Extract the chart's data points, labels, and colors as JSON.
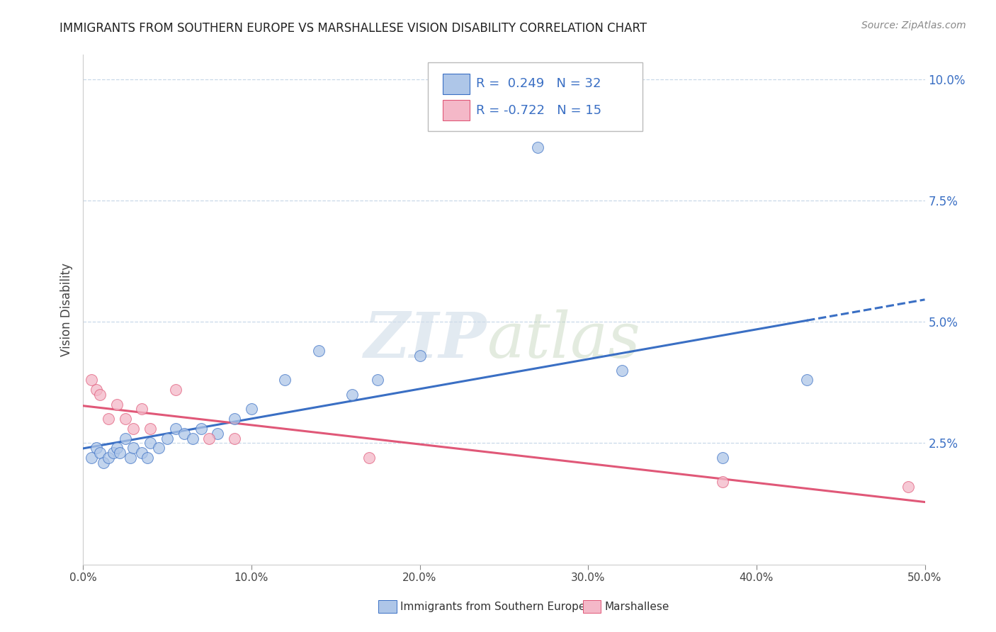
{
  "title": "IMMIGRANTS FROM SOUTHERN EUROPE VS MARSHALLESE VISION DISABILITY CORRELATION CHART",
  "source": "Source: ZipAtlas.com",
  "ylabel": "Vision Disability",
  "xlim": [
    0.0,
    0.5
  ],
  "ylim": [
    0.0,
    0.105
  ],
  "yticks": [
    0.025,
    0.05,
    0.075,
    0.1
  ],
  "ytick_labels": [
    "2.5%",
    "5.0%",
    "7.5%",
    "10.0%"
  ],
  "xticks": [
    0.0,
    0.1,
    0.2,
    0.3,
    0.4,
    0.5
  ],
  "xtick_labels": [
    "0.0%",
    "10.0%",
    "20.0%",
    "30.0%",
    "40.0%",
    "50.0%"
  ],
  "blue_R": 0.249,
  "blue_N": 32,
  "pink_R": -0.722,
  "pink_N": 15,
  "blue_color": "#aec6e8",
  "pink_color": "#f4b8c8",
  "blue_line_color": "#3a6fc4",
  "pink_line_color": "#e05878",
  "blue_scatter_x": [
    0.005,
    0.008,
    0.01,
    0.012,
    0.015,
    0.018,
    0.02,
    0.022,
    0.025,
    0.028,
    0.03,
    0.035,
    0.038,
    0.04,
    0.045,
    0.05,
    0.055,
    0.06,
    0.065,
    0.07,
    0.08,
    0.09,
    0.1,
    0.12,
    0.14,
    0.16,
    0.175,
    0.2,
    0.27,
    0.32,
    0.38,
    0.43
  ],
  "blue_scatter_y": [
    0.022,
    0.024,
    0.023,
    0.021,
    0.022,
    0.023,
    0.024,
    0.023,
    0.026,
    0.022,
    0.024,
    0.023,
    0.022,
    0.025,
    0.024,
    0.026,
    0.028,
    0.027,
    0.026,
    0.028,
    0.027,
    0.03,
    0.032,
    0.038,
    0.044,
    0.035,
    0.038,
    0.043,
    0.086,
    0.04,
    0.022,
    0.038
  ],
  "pink_scatter_x": [
    0.005,
    0.008,
    0.01,
    0.015,
    0.02,
    0.025,
    0.03,
    0.035,
    0.04,
    0.055,
    0.075,
    0.09,
    0.17,
    0.38,
    0.49
  ],
  "pink_scatter_y": [
    0.038,
    0.036,
    0.035,
    0.03,
    0.033,
    0.03,
    0.028,
    0.032,
    0.028,
    0.036,
    0.026,
    0.026,
    0.022,
    0.017,
    0.016
  ],
  "watermark_zip": "ZIP",
  "watermark_atlas": "atlas",
  "grid_color": "#c8d8e8",
  "spine_color": "#cccccc"
}
